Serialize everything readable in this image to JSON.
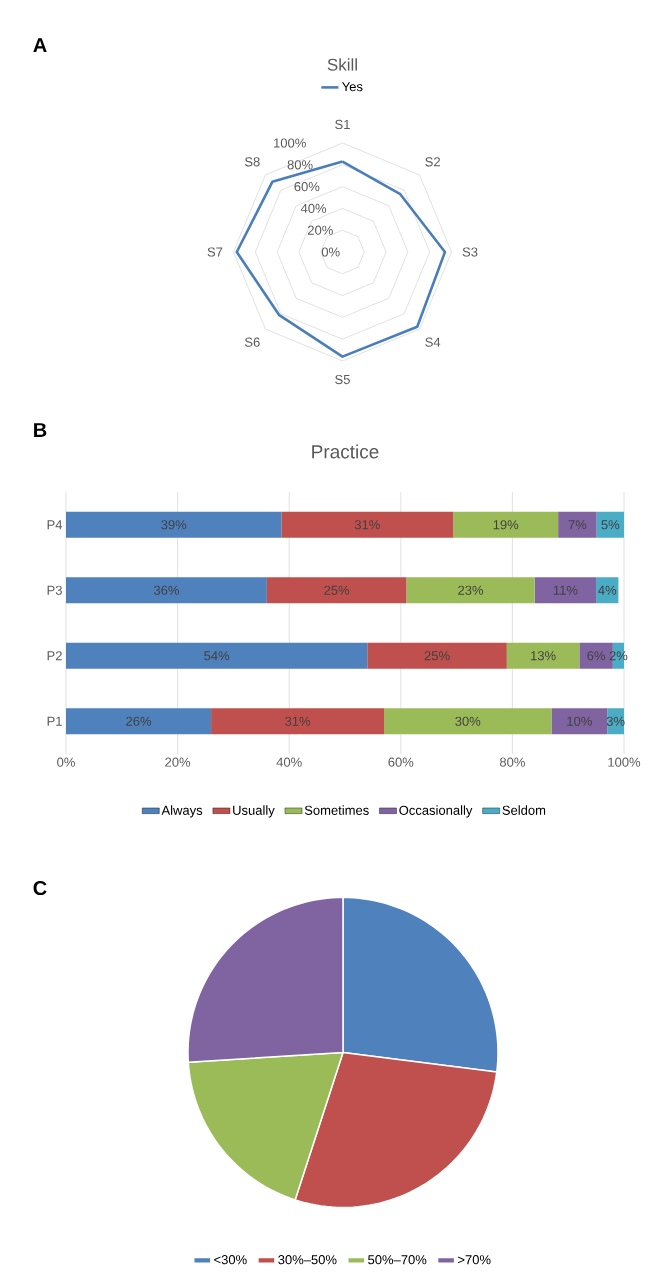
{
  "chart_data": [
    {
      "type": "radar",
      "title": "Skill",
      "annotations": [
        "A"
      ],
      "categories": [
        "S1",
        "S2",
        "S3",
        "S4",
        "S5",
        "S6",
        "S7",
        "S8"
      ],
      "series": [
        {
          "name": "Yes",
          "color": "#4a7ebb",
          "values": [
            83,
            75,
            94,
            97,
            96,
            82,
            97,
            91
          ]
        }
      ],
      "ylim": [
        0,
        100
      ],
      "yticks": [
        {
          "value": 0,
          "label": "0%"
        },
        {
          "value": 20,
          "label": "20%"
        },
        {
          "value": 40,
          "label": "40%"
        },
        {
          "value": 60,
          "label": "60%"
        },
        {
          "value": 80,
          "label": "80%"
        },
        {
          "value": 100,
          "label": "100%"
        }
      ],
      "grid": true,
      "legend": "top"
    },
    {
      "type": "bar",
      "orientation": "horizontal",
      "stacked": true,
      "title": "Practice",
      "annotations": [
        "B"
      ],
      "categories": [
        "P4",
        "P3",
        "P2",
        "P1"
      ],
      "series": [
        {
          "name": "Always",
          "color": "#4f81bd",
          "values": [
            38.6,
            36,
            54,
            26
          ],
          "value_labels": [
            "39%",
            "36%",
            "54%",
            "26%"
          ]
        },
        {
          "name": "Usually",
          "color": "#c0504d",
          "values": [
            30.8,
            25,
            25,
            31
          ],
          "value_labels": [
            "31%",
            "25%",
            "25%",
            "31%"
          ]
        },
        {
          "name": "Sometimes",
          "color": "#9bbb59",
          "values": [
            18.8,
            23,
            13,
            30
          ],
          "value_labels": [
            "19%",
            "23%",
            "13%",
            "30%"
          ]
        },
        {
          "name": "Occasionally",
          "color": "#8064a2",
          "values": [
            6.9,
            11,
            6,
            10
          ],
          "value_labels": [
            "7%",
            "11%",
            "6%",
            "10%"
          ]
        },
        {
          "name": "Seldom",
          "color": "#4bacc6",
          "values": [
            4.9,
            4,
            2,
            3
          ],
          "value_labels": [
            "5%",
            "4%",
            "2%",
            "3%"
          ]
        }
      ],
      "xlim": [
        0,
        100
      ],
      "xticks": [
        {
          "value": 0,
          "label": "0%"
        },
        {
          "value": 20,
          "label": "20%"
        },
        {
          "value": 40,
          "label": "40%"
        },
        {
          "value": 60,
          "label": "60%"
        },
        {
          "value": 80,
          "label": "80%"
        },
        {
          "value": 100,
          "label": "100%"
        }
      ],
      "grid": "x",
      "legend": "bottom"
    },
    {
      "type": "pie",
      "annotations": [
        "C"
      ],
      "categories": [
        "<30%",
        "30%–50%",
        "50%–70%",
        ">70%"
      ],
      "values": [
        27,
        28,
        19,
        26
      ],
      "colors": [
        "#4f81bd",
        "#c0504d",
        "#9bbb59",
        "#8064a2"
      ],
      "legend": "bottom"
    }
  ]
}
